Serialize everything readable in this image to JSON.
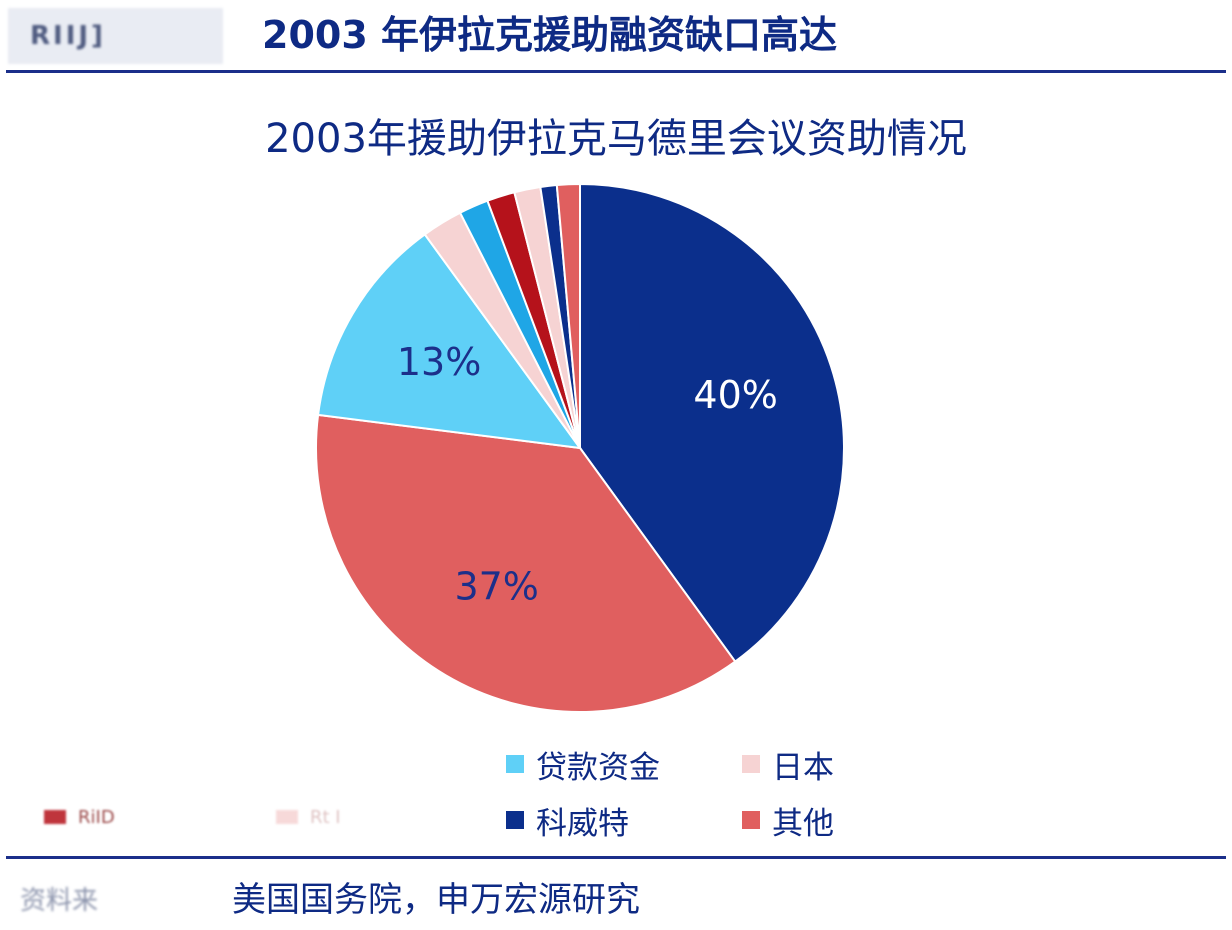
{
  "header": {
    "logo_text": "RIIJ]",
    "title": "2003 年伊拉克援助融资缺口高达"
  },
  "chart_data": {
    "type": "pie",
    "title": "2003年援助伊拉克马德里会议资助情况",
    "slices": [
      {
        "name": "",
        "value": 40,
        "color": "#0b2f8c",
        "label": "40%",
        "label_color": "#ffffff"
      },
      {
        "name": "其他",
        "value": 37,
        "color": "#e05f5f",
        "label": "37%",
        "label_color": "#1c2f8a"
      },
      {
        "name": "贷款资金",
        "value": 13,
        "color": "#5fd0f7",
        "label": "13%",
        "label_color": "#1c2f8a"
      },
      {
        "name": "日本",
        "value": 2.5,
        "color": "#f6d3d3",
        "label": "",
        "label_color": ""
      },
      {
        "name": "",
        "value": 1.8,
        "color": "#1fa6e6",
        "label": "",
        "label_color": ""
      },
      {
        "name": "",
        "value": 1.7,
        "color": "#b5121b",
        "label": "",
        "label_color": ""
      },
      {
        "name": "",
        "value": 1.6,
        "color": "#f6d3d3",
        "label": "",
        "label_color": ""
      },
      {
        "name": "科威特",
        "value": 1.0,
        "color": "#0b2f8c",
        "label": "",
        "label_color": ""
      },
      {
        "name": "",
        "value": 1.4,
        "color": "#e05f5f",
        "label": "",
        "label_color": ""
      }
    ],
    "legend": [
      {
        "label": "贷款资金",
        "color": "#5fd0f7"
      },
      {
        "label": "日本",
        "color": "#f6d3d3"
      },
      {
        "label": "科威特",
        "color": "#0b2f8c"
      },
      {
        "label": "其他",
        "color": "#e05f5f"
      },
      {
        "label": "RiID",
        "color": "#b5121b"
      },
      {
        "label": "Rt I",
        "color": "#f6d3d3"
      }
    ]
  },
  "footer": {
    "source_label": "资料来",
    "source_text": "美国国务院，申万宏源研究"
  }
}
